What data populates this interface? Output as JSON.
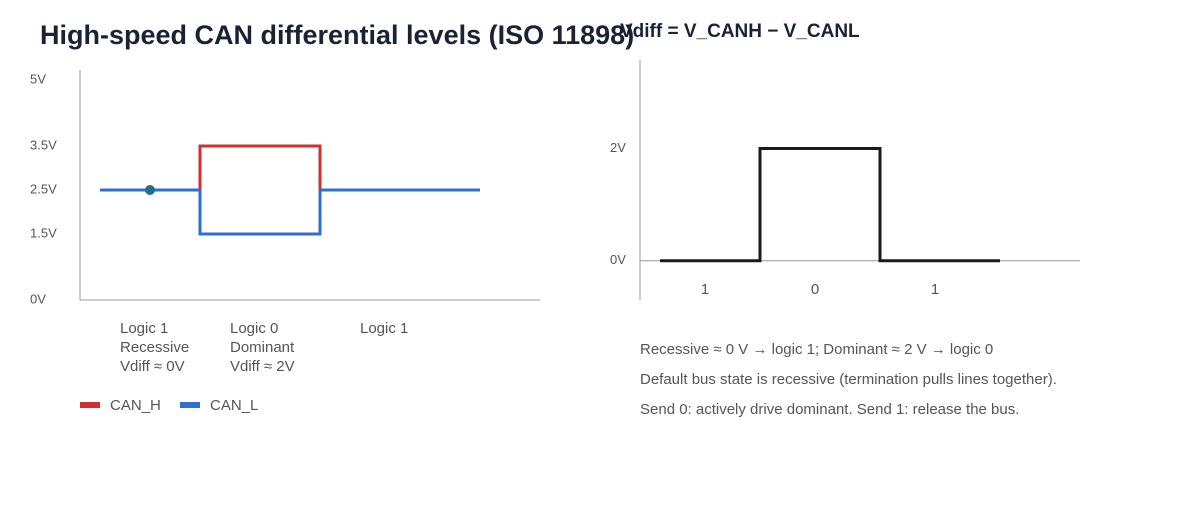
{
  "title": "High-speed CAN differential levels (ISO 11898)",
  "chart_data": [
    {
      "type": "line",
      "xlim": [
        -0.2,
        4.4
      ],
      "ylim": [
        0,
        5
      ],
      "yticks": [
        {
          "value": 0,
          "label": "0V"
        },
        {
          "value": 1.5,
          "label": "1.5V"
        },
        {
          "value": 2.5,
          "label": "2.5V"
        },
        {
          "value": 3.5,
          "label": "3.5V"
        },
        {
          "value": 5,
          "label": "5V"
        }
      ],
      "series": [
        {
          "name": "CAN_H",
          "color": "#d32f2f",
          "x": [
            0,
            1,
            1,
            2.2,
            2.2,
            3.8
          ],
          "values": [
            2.5,
            2.5,
            3.5,
            3.5,
            2.5,
            2.5
          ]
        },
        {
          "name": "CAN_L",
          "color": "#2f6fd1",
          "x": [
            0,
            1,
            1,
            2.2,
            2.2,
            3.8
          ],
          "values": [
            2.5,
            2.5,
            1.5,
            1.5,
            2.5,
            2.5
          ]
        }
      ],
      "marker": {
        "x": 0.5,
        "y": 2.5,
        "color": "#1f6f8b"
      },
      "annotations": [
        [
          "Logic 1",
          "Recessive",
          "Vdiff ≈ 0V"
        ],
        [
          "Logic 0",
          "Dominant",
          "Vdiff ≈ 2V"
        ],
        [
          "Logic 1"
        ]
      ]
    },
    {
      "type": "line",
      "title": "Vdiff = V_CANH − V_CANL",
      "xlim": [
        -0.2,
        4.2
      ],
      "ylim": [
        -0.7,
        3.4
      ],
      "yticks": [
        {
          "value": 0,
          "label": "0V"
        },
        {
          "value": 2,
          "label": "2V"
        }
      ],
      "series": [
        {
          "color": "#1a1a1a",
          "x": [
            0,
            1,
            1,
            2.2,
            2.2,
            3.4
          ],
          "values": [
            0,
            0,
            2,
            2,
            0,
            0
          ]
        }
      ],
      "bits": [
        "1",
        "0",
        "1"
      ]
    }
  ],
  "notes": [
    "Recessive ≈ 0 V → logic 1; Dominant ≈ 2 V → logic 0",
    "Default bus state is recessive (termination pulls lines together).",
    "Send 0: actively drive dominant. Send 1: release the bus."
  ]
}
